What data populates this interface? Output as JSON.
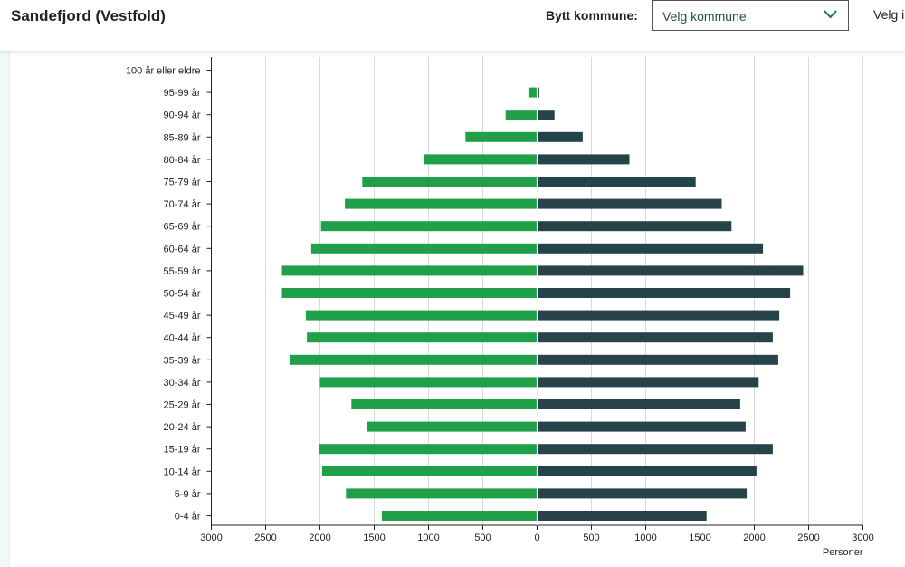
{
  "header": {
    "title": "Sandefjord (Vestfold)",
    "switch_label": "Bytt kommune:",
    "select_value": "Velg kommune",
    "extra_label": "Velg i"
  },
  "colors": {
    "female": "#1fa049",
    "male": "#27434a",
    "grid": "#d9d9d9"
  },
  "chart_data": {
    "type": "bar",
    "orientation": "horizontal",
    "categories": [
      "100 år eller eldre",
      "95-99 år",
      "90-94 år",
      "85-89 år",
      "80-84 år",
      "75-79 år",
      "70-74 år",
      "65-69 år",
      "60-64 år",
      "55-59 år",
      "50-54 år",
      "45-49 år",
      "40-44 år",
      "35-39 år",
      "30-34 år",
      "25-29 år",
      "20-24 år",
      "15-19 år",
      "10-14 år",
      "5-9 år",
      "0-4 år"
    ],
    "series": [
      {
        "side": "left",
        "color": "#1fa049",
        "values": [
          0,
          80,
          290,
          660,
          1040,
          1610,
          1770,
          1990,
          2080,
          2350,
          2350,
          2130,
          2120,
          2280,
          2000,
          1710,
          1570,
          2010,
          1980,
          1760,
          1430
        ]
      },
      {
        "side": "right",
        "color": "#27434a",
        "values": [
          0,
          20,
          160,
          420,
          850,
          1460,
          1700,
          1790,
          2080,
          2450,
          2330,
          2230,
          2170,
          2220,
          2040,
          1870,
          1920,
          2170,
          2020,
          1930,
          1560
        ]
      }
    ],
    "xticks": [
      3000,
      2500,
      2000,
      1500,
      1000,
      500,
      0,
      500,
      1000,
      1500,
      2000,
      2500,
      3000
    ],
    "xlim": [
      -3000,
      3000
    ],
    "xlabel": "Personer",
    "grid": true
  }
}
